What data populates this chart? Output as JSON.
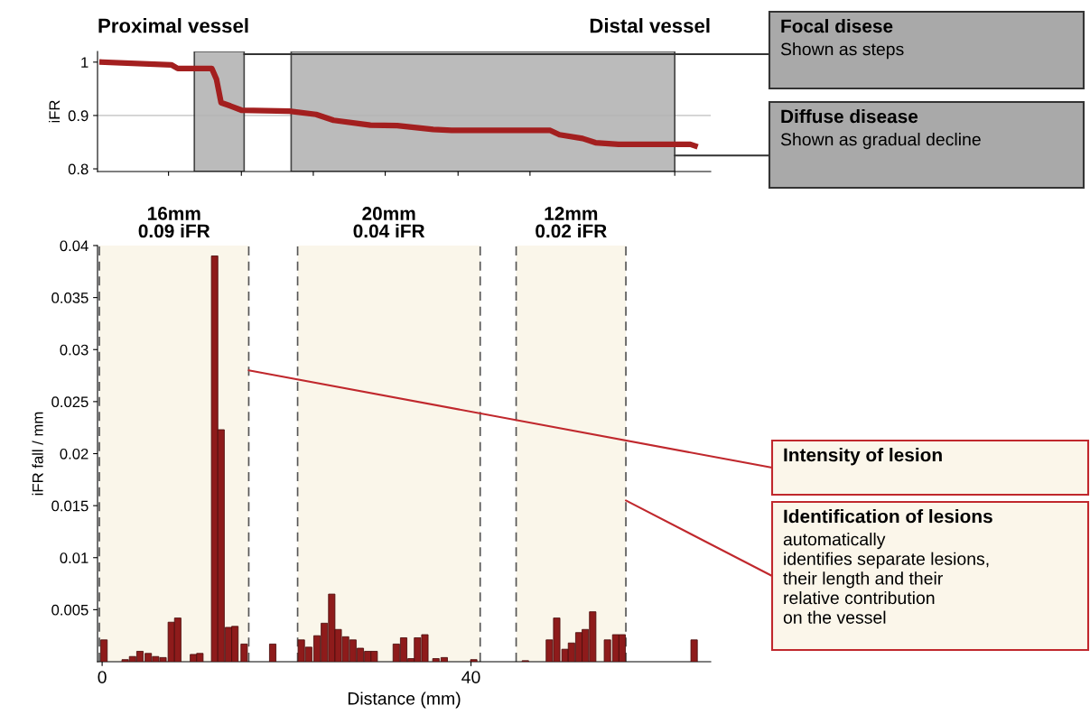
{
  "chart_data": [
    {
      "type": "line",
      "ylabel": "iFR",
      "xlim": [
        -0.5,
        66
      ],
      "ylim": [
        0.795,
        1.02
      ],
      "yticks": [
        0.8,
        0.9,
        1
      ],
      "xticks": [
        {
          "value": 7.2,
          "label": null
        },
        {
          "value": 15.1,
          "label": null
        },
        {
          "value": 22.9,
          "label": null
        },
        {
          "value": 30.7,
          "label": null
        },
        {
          "value": 38.6,
          "label": null
        },
        {
          "value": 46.4,
          "label": null
        },
        {
          "value": 62.1,
          "label": null
        }
      ],
      "tick_labels": "y",
      "grid": false,
      "marker": "none",
      "line_style": "solid",
      "x": [
        0,
        7.5,
        8.2,
        11.9,
        12.4,
        12.9,
        13.9,
        15.1,
        20.3,
        23.2,
        25.1,
        29.1,
        32.0,
        35.9,
        37.9,
        48.6,
        49.6,
        52.1,
        53.5,
        56.0,
        63.8,
        64.3
      ],
      "series": [
        {
          "color": "#a31f1f",
          "values": [
            1.0,
            0.995,
            0.988,
            0.988,
            0.968,
            0.924,
            0.918,
            0.91,
            0.908,
            0.902,
            0.891,
            0.882,
            0.881,
            0.874,
            0.872,
            0.872,
            0.864,
            0.857,
            0.849,
            0.846,
            0.846,
            0.843
          ]
        }
      ],
      "ref_lines": [
        {
          "axis": "y",
          "value": 0.9,
          "color": "#d0d0d0",
          "line_style": "solid"
        }
      ],
      "bands": [
        {
          "axis": "x",
          "from": 10.0,
          "to": 15.4,
          "color": "#b4b4b4"
        },
        {
          "axis": "x",
          "from": 20.5,
          "to": 62.1,
          "color": "#b4b4b4"
        }
      ],
      "annotations": [
        "Proximal vessel",
        "Distal vessel",
        {
          "text": "Focal disese\nShown as steps",
          "x": 15.4,
          "y": 1.015
        },
        {
          "text": "Diffuse disease\nShown as gradual decline",
          "x": 62.1,
          "y": 0.825
        }
      ]
    },
    {
      "type": "bar",
      "xlabel": "Distance (mm)",
      "ylabel": "iFR fall / mm",
      "xlim": [
        -0.5,
        66
      ],
      "ylim": [
        0,
        0.04
      ],
      "xticks": [
        0,
        40
      ],
      "yticks": [
        0.005,
        0.01,
        0.015,
        0.02,
        0.025,
        0.03,
        0.035,
        0.04
      ],
      "grid": false,
      "x": [
        0.2,
        2.5,
        3.3,
        4.1,
        5.0,
        5.8,
        6.6,
        7.5,
        8.2,
        9.9,
        10.6,
        12.2,
        12.9,
        13.7,
        14.4,
        15.4,
        18.5,
        21.6,
        22.4,
        23.3,
        24.1,
        24.9,
        25.6,
        26.4,
        27.2,
        28.0,
        28.8,
        29.5,
        31.9,
        32.7,
        33.5,
        34.2,
        35.0,
        36.2,
        37.1,
        40.3,
        45.9,
        48.5,
        49.3,
        50.2,
        50.9,
        51.7,
        52.4,
        53.2,
        54.8,
        55.7,
        56.4,
        64.2
      ],
      "series": [
        {
          "color": "#8e1b1b",
          "values": [
            0.0021,
            0.0002,
            0.0005,
            0.001,
            0.0008,
            0.0005,
            0.0004,
            0.0038,
            0.0042,
            0.0007,
            0.0008,
            0.039,
            0.0223,
            0.0033,
            0.0034,
            0.0017,
            0.0017,
            0.0021,
            0.0014,
            0.0025,
            0.0037,
            0.0065,
            0.0031,
            0.0024,
            0.0021,
            0.0013,
            0.001,
            0.001,
            0.0017,
            0.0023,
            0.0003,
            0.0023,
            0.0026,
            0.0003,
            0.0004,
            0.0002,
            0.0001,
            0.0021,
            0.0042,
            0.0012,
            0.0018,
            0.0028,
            0.0031,
            0.0048,
            0.0021,
            0.0026,
            0.0026,
            0.0021
          ]
        }
      ],
      "bands": [
        {
          "axis": "x",
          "from": -0.3,
          "to": 15.9,
          "label": "16mm\n0.09 iFR",
          "color": "#faf6ea"
        },
        {
          "axis": "x",
          "from": 21.2,
          "to": 41.0,
          "label": "20mm\n0.04 iFR",
          "color": "#faf6ea"
        },
        {
          "axis": "x",
          "from": 44.9,
          "to": 56.8,
          "label": "12mm\n0.02 iFR",
          "color": "#faf6ea"
        }
      ],
      "ref_lines": [
        {
          "axis": "x",
          "value": -0.3,
          "color": "#555555",
          "line_style": "dashed"
        },
        {
          "axis": "x",
          "value": 15.9,
          "color": "#555555",
          "line_style": "dashed"
        },
        {
          "axis": "x",
          "value": 21.2,
          "color": "#555555",
          "line_style": "dashed"
        },
        {
          "axis": "x",
          "value": 41.0,
          "color": "#555555",
          "line_style": "dashed"
        },
        {
          "axis": "x",
          "value": 44.9,
          "color": "#555555",
          "line_style": "dashed"
        },
        {
          "axis": "x",
          "value": 56.8,
          "color": "#555555",
          "line_style": "dashed"
        }
      ],
      "annotations": [
        {
          "text": "Intensity of lesion",
          "x": 15.9,
          "y": 0.028
        },
        {
          "text": "Identification of lesions\nautomatically\nidentifies separate lesions,\ntheir length and their\nrelative contribution\non the vessel",
          "x": 56.8,
          "y": 0.0155
        }
      ]
    }
  ]
}
